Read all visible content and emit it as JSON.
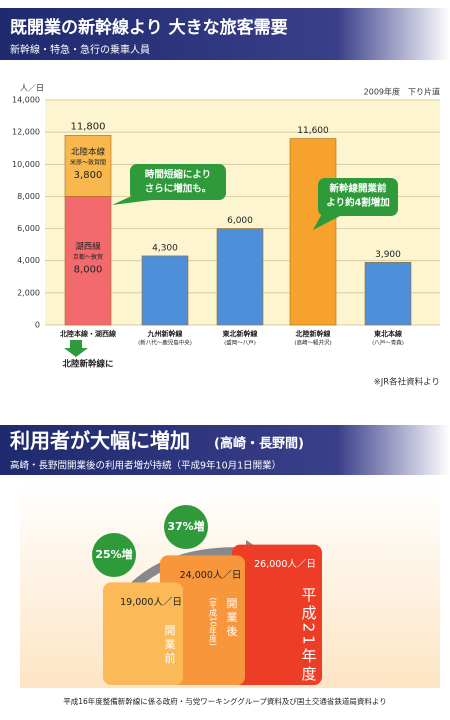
{
  "chart_data": [
    {
      "type": "bar",
      "title": "既開業の新幹線より 大きな旅客需要",
      "subtitle": "新幹線・特急・急行の乗車人員",
      "y_label": "人／日",
      "note": "2009年度　下り片道",
      "source": "※JR各社資料より",
      "ylim": [
        0,
        14000
      ],
      "yticks": [
        0,
        {
          "value": 2000,
          "label": "2,000"
        },
        {
          "value": 4000,
          "label": "4,000"
        },
        {
          "value": 6000,
          "label": "6,000"
        },
        {
          "value": 8000,
          "label": "8,000"
        },
        {
          "value": 10000,
          "label": "10,000"
        },
        {
          "value": 12000,
          "label": "12,000"
        },
        {
          "value": 14000,
          "label": "14,000"
        }
      ],
      "grid": true,
      "categories": [
        "北陸本線・湖西線",
        "九州新幹線",
        "東北新幹線",
        "北陸新幹線",
        "東北本線"
      ],
      "category_notes": [
        null,
        "(新八代〜鹿児島中央)",
        "(盛岡〜八戸)",
        "(高崎〜軽井沢)",
        "(八戸〜青森)"
      ],
      "arrow_note": "北陸新幹線に",
      "bars": [
        {
          "segments": [
            {
              "name": "湖西線",
              "note": "京都〜敦賀",
              "value": 8000,
              "label": "8,000",
              "color": "#f26a6e"
            },
            {
              "name": "北陸本線",
              "note": "米原〜敦賀間",
              "value": 3800,
              "label": "3,800",
              "color": "#f8b84e"
            }
          ],
          "total": 11800,
          "total_label": "11,800"
        },
        {
          "segments": [
            {
              "value": 4300,
              "label": "4,300",
              "color": "#4d8fd8"
            }
          ]
        },
        {
          "segments": [
            {
              "value": 6000,
              "label": "6,000",
              "color": "#4d8fd8"
            }
          ]
        },
        {
          "segments": [
            {
              "value": 11600,
              "label": "11,600",
              "color": "#f7a22c"
            }
          ]
        },
        {
          "segments": [
            {
              "value": 3900,
              "label": "3,900",
              "color": "#4d8fd8"
            }
          ]
        }
      ],
      "annotations": [
        {
          "lines": [
            "時間短縮により",
            "さらに増加も。"
          ]
        },
        {
          "lines": [
            "新幹線開業前",
            "より約4割増加"
          ]
        }
      ]
    },
    {
      "type": "bar",
      "title": "利用者が大幅に増加",
      "title_note": "(高崎・長野間)",
      "subtitle": "高崎・長野間開業後の利用者増が持続（平成9年10月1日開業）",
      "categories": [
        "開業前",
        "開業後",
        "平成21年度"
      ],
      "category_notes": [
        null,
        "(平成10年度)",
        null
      ],
      "values": [
        19000,
        24000,
        26000
      ],
      "value_labels": [
        "19,000人／日",
        "24,000人／日",
        "26,000人／日"
      ],
      "colors": [
        "#fbb957",
        "#f7963a",
        "#ee3d26"
      ],
      "growth": [
        {
          "value": 25,
          "label": "25%増"
        },
        {
          "value": 37,
          "label": "37%増"
        }
      ],
      "source": "平成16年度整備新幹線に係る政府・与党ワーキンググループ資料及び国土交通省鉄道局資料より"
    }
  ]
}
